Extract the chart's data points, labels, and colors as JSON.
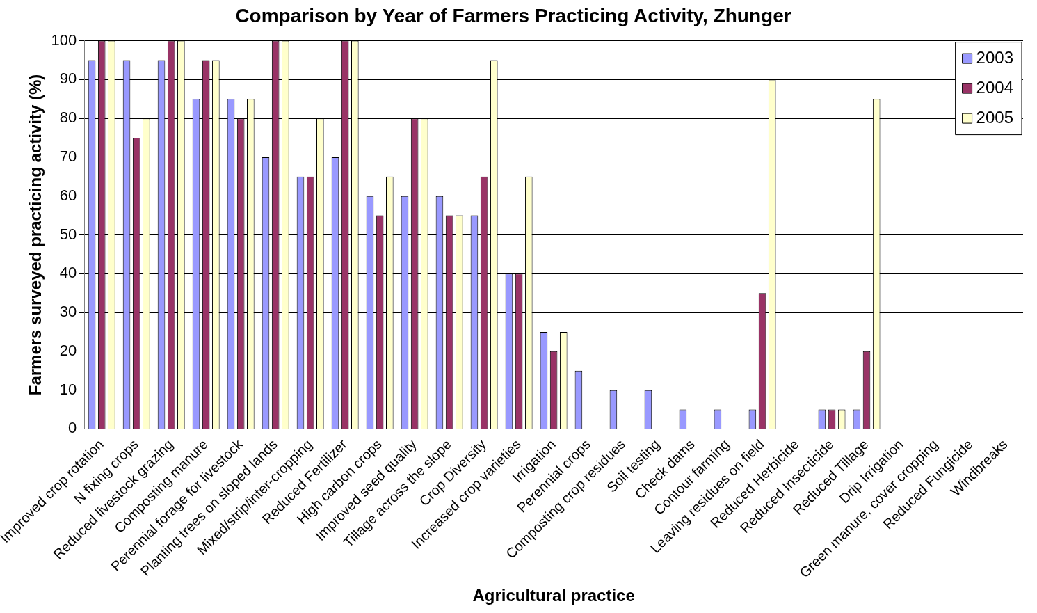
{
  "chart_data": {
    "type": "bar",
    "title": "Comparison by Year of Farmers Practicing Activity, Zhunger",
    "xlabel": "Agricultural practice",
    "ylabel": "Farmers surveyed practicing activity (%)",
    "categories": [
      "Improved crop rotation",
      "N fixing crops",
      "Reduced livestock grazing",
      "Composting manure",
      "Perennial forage for livestock",
      "Planting trees on sloped lands",
      "Mixed/strip/inter-cropping",
      "Reduced Fertilizer",
      "High carbon crops",
      "Improved seed quality",
      "Tillage across the slope",
      "Crop Diversity",
      "Increased crop varieties",
      "Irrigation",
      "Perennial crops",
      "Composting crop residues",
      "Soil testing",
      "Check dams",
      "Contour farming",
      "Leaving residues on field",
      "Reduced Herbicide",
      "Reduced Insecticide",
      "Reduced Tillage",
      "Drip Irrigation",
      "Green manure, cover cropping",
      "Reduced Fungicide",
      "Windbreaks"
    ],
    "series": [
      {
        "name": "2003",
        "color": "#9999ff",
        "values": [
          95,
          95,
          95,
          85,
          85,
          70,
          65,
          70,
          60,
          60,
          60,
          55,
          40,
          25,
          15,
          10,
          10,
          5,
          5,
          5,
          0,
          5,
          5,
          0,
          0,
          0,
          0
        ]
      },
      {
        "name": "2004",
        "color": "#993366",
        "values": [
          100,
          75,
          100,
          95,
          80,
          100,
          65,
          100,
          55,
          80,
          55,
          65,
          40,
          20,
          0,
          0,
          0,
          0,
          0,
          35,
          0,
          5,
          20,
          0,
          0,
          0,
          0
        ]
      },
      {
        "name": "2005",
        "color": "#ffffcc",
        "values": [
          100,
          80,
          100,
          95,
          85,
          100,
          80,
          100,
          65,
          80,
          55,
          95,
          65,
          25,
          0,
          0,
          0,
          0,
          0,
          90,
          0,
          5,
          85,
          0,
          0,
          0,
          0
        ]
      }
    ],
    "ylim": [
      0,
      100
    ],
    "yticks": [
      0,
      10,
      20,
      30,
      40,
      50,
      60,
      70,
      80,
      90,
      100
    ],
    "grid": "y",
    "legend": "top right"
  }
}
